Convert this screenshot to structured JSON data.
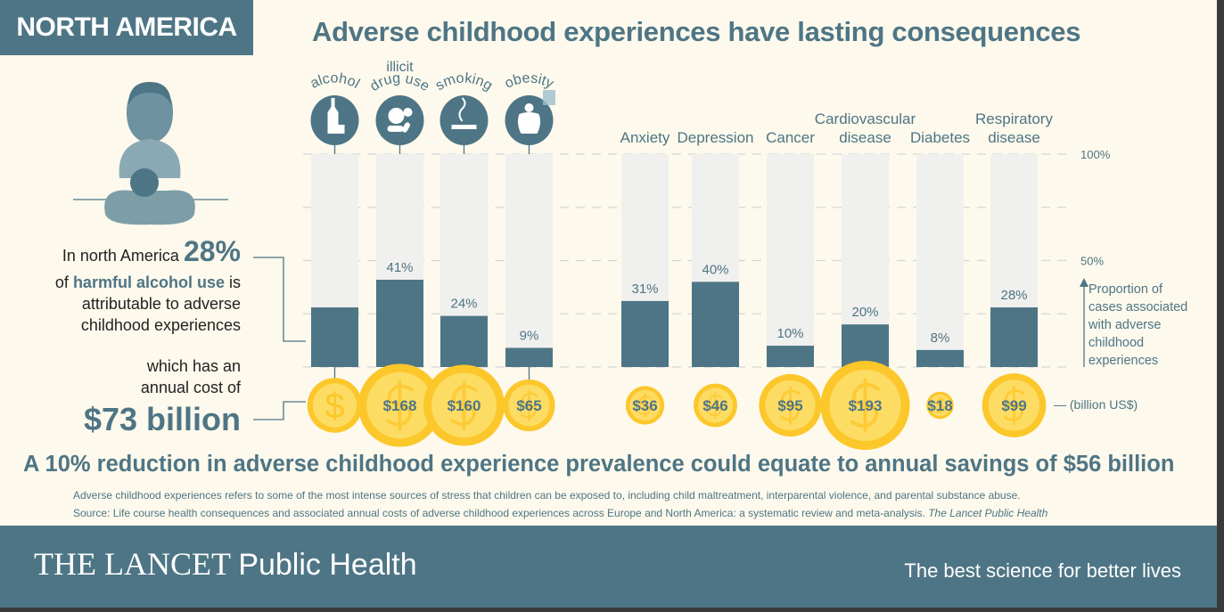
{
  "region": "NORTH AMERICA",
  "title": "Adverse childhood experiences have lasting consequences",
  "left_text": {
    "line1_prefix": "In north America",
    "percent": "28%",
    "line2_prefix": "of",
    "highlight": "harmful alcohol use",
    "line2_suffix": "is",
    "line3": "attributable to adverse",
    "line4": "childhood experiences",
    "cost_line1": "which has an",
    "cost_line2": "annual cost of",
    "cost_value": "$73 billion"
  },
  "chart_data": {
    "type": "bar",
    "categories": [
      "alcohol",
      "illicit drug use",
      "smoking",
      "obesity",
      "Anxiety",
      "Depression",
      "Cancer",
      "Cardiovascular disease",
      "Diabetes",
      "Respiratory disease"
    ],
    "category_labels": [
      [
        "alcohol"
      ],
      [
        "illicit",
        "drug use"
      ],
      [
        "smoking"
      ],
      [
        "obesity"
      ],
      [
        "Anxiety"
      ],
      [
        "Depression"
      ],
      [
        "Cancer"
      ],
      [
        "Cardiovascular",
        "disease"
      ],
      [
        "Diabetes"
      ],
      [
        "Respiratory",
        "disease"
      ]
    ],
    "category_icons": [
      "bottle-glass-icon",
      "pills-icon",
      "cigarette-icon",
      "obese-person-icon",
      null,
      null,
      null,
      null,
      null,
      null
    ],
    "series": [
      {
        "values": [
          28,
          41,
          24,
          9,
          31,
          40,
          10,
          20,
          8,
          28
        ]
      }
    ],
    "data_labels": [
      null,
      "41%",
      "24%",
      "9%",
      "31%",
      "40%",
      "10%",
      "20%",
      "8%",
      "28%"
    ],
    "costs_billion_usd": [
      73,
      168,
      160,
      65,
      36,
      46,
      95,
      193,
      18,
      99
    ],
    "cost_labels": [
      "$",
      "$168",
      "$160",
      "$65",
      "$36",
      "$46",
      "$95",
      "$193",
      "$18",
      "$99"
    ],
    "ylim": [
      0,
      100
    ],
    "yticks": [
      "100%",
      "50%"
    ],
    "ylabel": "Proportion of cases associated with adverse childhood experiences",
    "ylabel_lines": [
      "Proportion of",
      "cases associated",
      "with adverse",
      "childhood",
      "experiences"
    ],
    "cost_unit": "— (billion US$)",
    "colors": {
      "bar": "#4e7585",
      "bar_bg": "#f0f0ee",
      "coin_outer": "#fcc72a",
      "coin_inner": "#fddc64",
      "text": "#4e7585"
    }
  },
  "headline": "A 10% reduction in adverse childhood experience prevalence could equate to annual savings of $56 billion",
  "notes": {
    "definition": "Adverse childhood experiences refers to some of the most intense sources of stress that children can be exposed to, including child maltreatment, interparental violence, and parental substance abuse.",
    "source_prefix": "Source: Life course health consequences and associated annual costs of adverse childhood experiences across Europe and North America: a systematic review and meta-analysis.",
    "source_journal": "The Lancet Public Health"
  },
  "footer": {
    "brand": "THE LANCET",
    "brand_sub": "Public Health",
    "tagline": "The best science for better lives"
  }
}
